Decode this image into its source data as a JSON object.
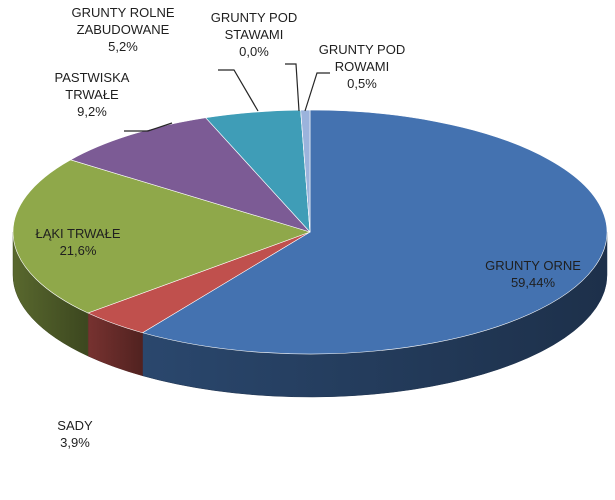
{
  "chart_data": {
    "type": "pie",
    "style": "3d",
    "title": "",
    "legend": "none",
    "data_labels": "outside-and-inside with leader lines",
    "slices": [
      {
        "category_lines": [
          "GRUNTY ORNE"
        ],
        "value": 59.44,
        "value_label": "59,44%",
        "color": "#4472b0"
      },
      {
        "category_lines": [
          "SADY"
        ],
        "value": 3.9,
        "value_label": "3,9%",
        "color": "#c0504d"
      },
      {
        "category_lines": [
          "ŁĄKI TRWAŁE"
        ],
        "value": 21.6,
        "value_label": "21,6%",
        "color": "#8fa84a"
      },
      {
        "category_lines": [
          "PASTWISKA",
          "TRWAŁE"
        ],
        "value": 9.2,
        "value_label": "9,2%",
        "color": "#7c5b95"
      },
      {
        "category_lines": [
          "GRUNTY ROLNE",
          "ZABUDOWANE"
        ],
        "value": 5.2,
        "value_label": "5,2%",
        "color": "#3f9db7"
      },
      {
        "category_lines": [
          "GRUNTY POD",
          "STAWAMI"
        ],
        "value": 0.0,
        "value_label": "0,0%",
        "color": "#e0892f"
      },
      {
        "category_lines": [
          "GRUNTY POD",
          "ROWAMI"
        ],
        "value": 0.5,
        "value_label": "0,5%",
        "color": "#9bb3dc"
      }
    ]
  }
}
